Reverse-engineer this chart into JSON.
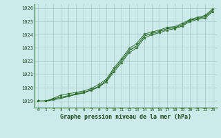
{
  "title": "Graphe pression niveau de la mer (hPa)",
  "background_color": "#cdeaea",
  "grid_color": "#a8cccc",
  "line_color": "#2d6e2d",
  "marker_color": "#2d6e2d",
  "text_color": "#1a4a1a",
  "xlim": [
    -0.5,
    23.5
  ],
  "ylim": [
    1018.5,
    1026.3
  ],
  "yticks": [
    1019,
    1020,
    1021,
    1022,
    1023,
    1024,
    1025,
    1026
  ],
  "xticks": [
    0,
    1,
    2,
    3,
    4,
    5,
    6,
    7,
    8,
    9,
    10,
    11,
    12,
    13,
    14,
    15,
    16,
    17,
    18,
    19,
    20,
    21,
    22,
    23
  ],
  "series1_x": [
    0,
    1,
    2,
    3,
    4,
    5,
    6,
    7,
    8,
    9,
    10,
    11,
    12,
    13,
    14,
    15,
    16,
    17,
    18,
    19,
    20,
    21,
    22,
    23
  ],
  "series1_y": [
    1019.0,
    1019.0,
    1019.15,
    1019.3,
    1019.4,
    1019.55,
    1019.65,
    1019.8,
    1020.05,
    1020.45,
    1021.2,
    1021.9,
    1022.65,
    1023.0,
    1023.75,
    1024.0,
    1024.15,
    1024.35,
    1024.45,
    1024.65,
    1025.0,
    1025.15,
    1025.25,
    1025.75
  ],
  "series2_x": [
    0,
    1,
    2,
    3,
    4,
    5,
    6,
    7,
    8,
    9,
    10,
    11,
    12,
    13,
    14,
    15,
    16,
    17,
    18,
    19,
    20,
    21,
    22,
    23
  ],
  "series2_y": [
    1019.0,
    1019.0,
    1019.2,
    1019.45,
    1019.55,
    1019.65,
    1019.75,
    1019.95,
    1020.25,
    1020.65,
    1021.5,
    1022.2,
    1022.95,
    1023.35,
    1024.05,
    1024.2,
    1024.35,
    1024.55,
    1024.6,
    1024.85,
    1025.15,
    1025.3,
    1025.45,
    1025.95
  ],
  "series3_x": [
    0,
    1,
    2,
    3,
    4,
    5,
    6,
    7,
    8,
    9,
    10,
    11,
    12,
    13,
    14,
    15,
    16,
    17,
    18,
    19,
    20,
    21,
    22,
    23
  ],
  "series3_y": [
    1019.0,
    1019.0,
    1019.1,
    1019.2,
    1019.35,
    1019.5,
    1019.6,
    1019.85,
    1020.1,
    1020.55,
    1021.35,
    1022.05,
    1022.8,
    1023.15,
    1023.9,
    1024.1,
    1024.25,
    1024.45,
    1024.52,
    1024.75,
    1025.08,
    1025.22,
    1025.35,
    1025.85
  ]
}
